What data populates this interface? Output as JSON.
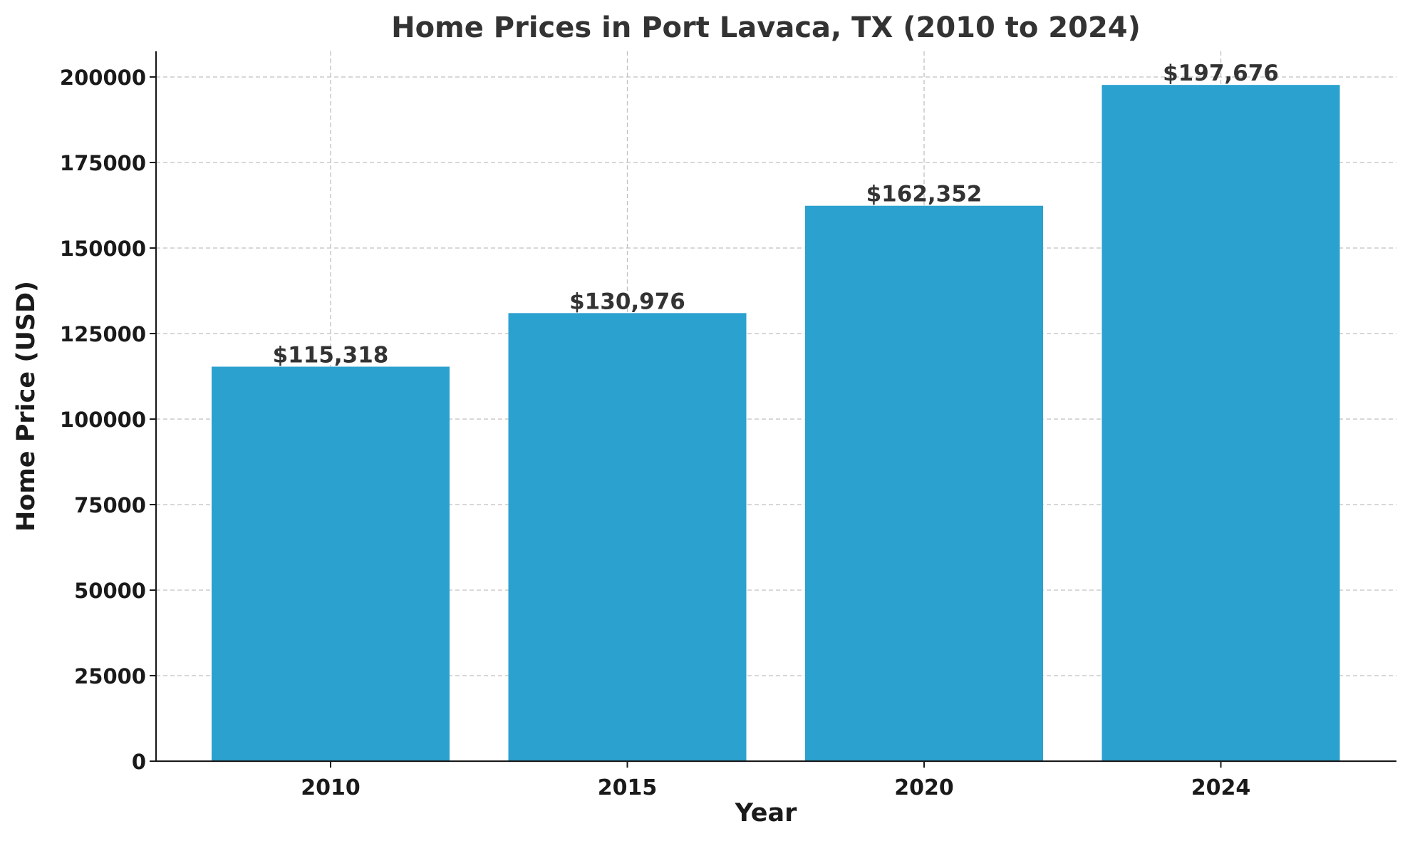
{
  "chart_data": {
    "type": "bar",
    "title": "Home Prices in Port Lavaca, TX (2010 to 2024)",
    "xlabel": "Year",
    "ylabel": "Home Price (USD)",
    "categories": [
      "2010",
      "2015",
      "2020",
      "2024"
    ],
    "values": [
      115318,
      130976,
      162352,
      197676
    ],
    "data_labels": [
      "$115,318",
      "$130,976",
      "$162,352",
      "$197,676"
    ],
    "yticks": [
      0,
      25000,
      50000,
      75000,
      100000,
      125000,
      150000,
      175000,
      200000
    ],
    "ylim": [
      0,
      207500
    ],
    "grid": true,
    "bar_color": "#2ba1cf",
    "grid_color": "#c0c0c0"
  }
}
